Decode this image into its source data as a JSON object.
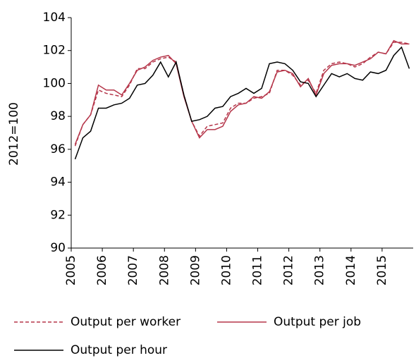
{
  "chart_data": {
    "type": "line",
    "ylabel": "2012=100",
    "categories": [
      "2005",
      null,
      null,
      null,
      "2006",
      null,
      null,
      null,
      "2007",
      null,
      null,
      null,
      "2008",
      null,
      null,
      null,
      "2009",
      null,
      null,
      null,
      "2010",
      null,
      null,
      null,
      "2011",
      null,
      null,
      null,
      "2012",
      null,
      null,
      null,
      "2013",
      null,
      null,
      null,
      "2014",
      null,
      null,
      null,
      "2015",
      null,
      null,
      null
    ],
    "series": [
      {
        "name": "Output per worker",
        "color": "#b5364a",
        "dashed": true,
        "values": [
          96.2,
          97.5,
          98.1,
          99.6,
          99.4,
          99.3,
          99.2,
          99.9,
          100.9,
          100.9,
          101.3,
          101.5,
          101.6,
          101.3,
          99.3,
          97.7,
          96.8,
          97.4,
          97.5,
          97.6,
          98.5,
          98.8,
          98.8,
          99.1,
          99.2,
          99.4,
          100.8,
          100.8,
          100.5,
          99.9,
          100.2,
          99.4,
          100.8,
          101.2,
          101.3,
          101.2,
          101.0,
          101.2,
          101.6,
          101.9,
          101.8,
          102.5,
          102.5,
          102.4
        ]
      },
      {
        "name": "Output per job",
        "color": "#b5364a",
        "dashed": false,
        "values": [
          96.3,
          97.5,
          98.1,
          99.9,
          99.6,
          99.6,
          99.3,
          100.0,
          100.8,
          101.0,
          101.4,
          101.6,
          101.7,
          101.2,
          99.2,
          97.7,
          96.7,
          97.2,
          97.2,
          97.4,
          98.3,
          98.7,
          98.8,
          99.2,
          99.1,
          99.5,
          100.7,
          100.8,
          100.6,
          99.8,
          100.3,
          99.3,
          100.6,
          101.1,
          101.2,
          101.2,
          101.1,
          101.3,
          101.5,
          101.9,
          101.8,
          102.6,
          102.4,
          102.4
        ]
      },
      {
        "name": "Output per hour",
        "color": "#000000",
        "dashed": false,
        "values": [
          95.4,
          96.7,
          97.1,
          98.5,
          98.5,
          98.7,
          98.8,
          99.1,
          99.9,
          100.0,
          100.5,
          101.3,
          100.4,
          101.3,
          99.3,
          97.7,
          97.8,
          98.0,
          98.5,
          98.6,
          99.2,
          99.4,
          99.7,
          99.4,
          99.7,
          101.2,
          101.3,
          101.2,
          100.8,
          100.1,
          100.0,
          99.2,
          99.9,
          100.6,
          100.4,
          100.6,
          100.3,
          100.2,
          100.7,
          100.6,
          100.8,
          101.7,
          102.2,
          100.9
        ]
      }
    ],
    "ylim": [
      90,
      104
    ],
    "yticks": [
      90,
      92,
      94,
      96,
      98,
      100,
      102,
      104
    ],
    "grid": false
  }
}
